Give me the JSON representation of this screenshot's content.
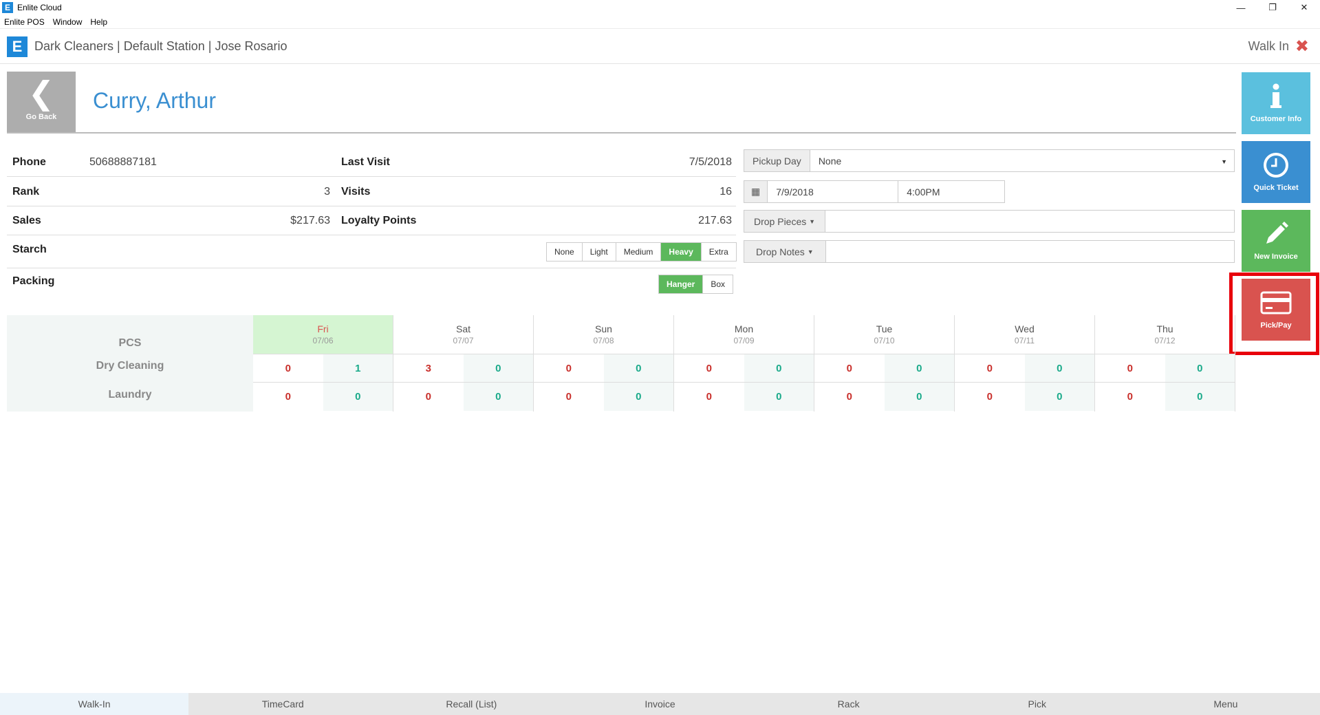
{
  "window": {
    "title": "Enlite Cloud",
    "menu": [
      "Enlite POS",
      "Window",
      "Help"
    ]
  },
  "header": {
    "title": "Dark Cleaners | Default Station | Jose Rosario",
    "mode": "Walk In"
  },
  "customer": {
    "go_back": "Go Back",
    "name": "Curry, Arthur",
    "phone_label": "Phone",
    "phone": "50688887181",
    "last_visit_label": "Last Visit",
    "last_visit": "7/5/2018",
    "rank_label": "Rank",
    "rank": "3",
    "visits_label": "Visits",
    "visits": "16",
    "sales_label": "Sales",
    "sales": "$217.63",
    "loyalty_label": "Loyalty Points",
    "loyalty": "217.63",
    "starch_label": "Starch",
    "starch_options": [
      "None",
      "Light",
      "Medium",
      "Heavy",
      "Extra"
    ],
    "starch_selected": "Heavy",
    "packing_label": "Packing",
    "packing_options": [
      "Hanger",
      "Box"
    ],
    "packing_selected": "Hanger"
  },
  "form": {
    "pickup_day_label": "Pickup Day",
    "pickup_day_value": "None",
    "date": "7/9/2018",
    "time": "4:00PM",
    "drop_pieces_label": "Drop Pieces",
    "drop_notes_label": "Drop Notes"
  },
  "side_buttons": {
    "customer_info": "Customer Info",
    "quick_ticket": "Quick Ticket",
    "new_invoice": "New Invoice",
    "pick_pay": "Pick/Pay"
  },
  "schedule": {
    "pcs_label": "PCS",
    "rows": [
      "Dry Cleaning",
      "Laundry"
    ],
    "days": [
      {
        "name": "Fri",
        "date": "07/06",
        "today": true,
        "dry": [
          "0",
          "1"
        ],
        "laundry": [
          "0",
          "0"
        ]
      },
      {
        "name": "Sat",
        "date": "07/07",
        "today": false,
        "dry": [
          "3",
          "0"
        ],
        "laundry": [
          "0",
          "0"
        ]
      },
      {
        "name": "Sun",
        "date": "07/08",
        "today": false,
        "dry": [
          "0",
          "0"
        ],
        "laundry": [
          "0",
          "0"
        ]
      },
      {
        "name": "Mon",
        "date": "07/09",
        "today": false,
        "dry": [
          "0",
          "0"
        ],
        "laundry": [
          "0",
          "0"
        ]
      },
      {
        "name": "Tue",
        "date": "07/10",
        "today": false,
        "dry": [
          "0",
          "0"
        ],
        "laundry": [
          "0",
          "0"
        ]
      },
      {
        "name": "Wed",
        "date": "07/11",
        "today": false,
        "dry": [
          "0",
          "0"
        ],
        "laundry": [
          "0",
          "0"
        ]
      },
      {
        "name": "Thu",
        "date": "07/12",
        "today": false,
        "dry": [
          "0",
          "0"
        ],
        "laundry": [
          "0",
          "0"
        ]
      }
    ]
  },
  "bottom_nav": [
    "Walk-In",
    "TimeCard",
    "Recall (List)",
    "Invoice",
    "Rack",
    "Pick",
    "Menu"
  ],
  "bottom_nav_active": "Walk-In",
  "colors": {
    "accent": "#1e88d8",
    "customer_info": "#5bc0de",
    "quick_ticket": "#3a8fd1",
    "new_invoice": "#5cb85c",
    "pick_pay": "#d9534f",
    "highlight": "#e8000b"
  }
}
